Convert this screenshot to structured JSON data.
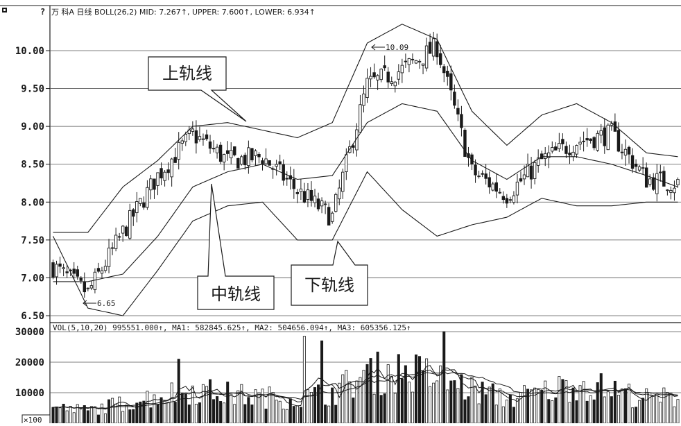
{
  "header": {
    "corner_icon": "square-marker-icon",
    "help_icon": "question-icon",
    "text": "万  科A 日线 BOLL(26,2) MID: 7.267↑, UPPER: 7.600↑, LOWER: 6.934↑"
  },
  "volume_header": {
    "text": "VOL(5,10,20) 995551.000↑, MA1: 582845.625↑, MA2: 504656.094↑, MA3: 605356.125↑"
  },
  "volume_unit": "×100",
  "callouts": {
    "upper": "上轨线",
    "middle": "中轨线",
    "lower": "下轨线"
  },
  "annotations": {
    "high": "10.09",
    "low": "6.65"
  },
  "colors": {
    "background": "#ffffff",
    "ink": "#1a1a1a",
    "grid": "#555555"
  },
  "chart_data": [
    {
      "type": "line",
      "panel": "price",
      "ylim": [
        6.5,
        10.5
      ],
      "yticks": [
        "10.00",
        "9.50",
        "9.00",
        "8.50",
        "8.00",
        "7.50",
        "7.00",
        "6.50"
      ],
      "ytick_values": [
        10.0,
        9.5,
        9.0,
        8.5,
        8.0,
        7.5,
        7.0,
        6.5
      ],
      "candles": 180,
      "x": [
        0,
        10,
        20,
        30,
        40,
        50,
        60,
        70,
        80,
        90,
        100,
        110,
        120,
        130,
        140,
        150,
        160,
        170,
        179
      ],
      "close": [
        7.15,
        6.8,
        7.6,
        8.35,
        8.9,
        8.55,
        8.6,
        8.15,
        7.8,
        9.55,
        9.75,
        10.05,
        8.4,
        8.1,
        8.55,
        8.8,
        8.9,
        8.3,
        8.25
      ],
      "bands": {
        "upper": [
          7.6,
          7.6,
          8.2,
          8.55,
          9.0,
          9.05,
          8.95,
          8.85,
          9.05,
          10.1,
          10.35,
          10.15,
          9.2,
          8.75,
          9.15,
          9.3,
          9.05,
          8.65,
          8.6
        ],
        "middle": [
          6.95,
          6.95,
          7.05,
          7.55,
          8.2,
          8.4,
          8.5,
          8.3,
          8.35,
          9.05,
          9.3,
          9.2,
          8.55,
          8.3,
          8.6,
          8.6,
          8.5,
          8.35,
          8.2
        ],
        "lower": [
          7.55,
          6.6,
          6.5,
          7.1,
          7.75,
          7.95,
          8.0,
          7.5,
          7.5,
          8.4,
          7.9,
          7.55,
          7.7,
          7.8,
          8.05,
          7.95,
          7.95,
          8.0,
          8.0
        ]
      },
      "high_point": {
        "x": 91,
        "value": 10.09
      },
      "low_point": {
        "x": 9,
        "value": 6.65
      }
    },
    {
      "type": "bar",
      "panel": "volume",
      "ylim": [
        0,
        32000
      ],
      "yticks": [
        "30000",
        "20000",
        "10000"
      ],
      "ytick_values": [
        30000,
        20000,
        10000
      ],
      "x": [
        0,
        10,
        20,
        30,
        40,
        50,
        60,
        70,
        80,
        90,
        100,
        110,
        120,
        130,
        140,
        150,
        160,
        170,
        179
      ],
      "values": [
        5000,
        4200,
        6500,
        9000,
        11000,
        9500,
        8500,
        8000,
        10000,
        16000,
        17000,
        15000,
        11000,
        8000,
        10000,
        13000,
        11000,
        8000,
        8500
      ],
      "peaks": [
        {
          "x": 36,
          "value": 21000
        },
        {
          "x": 72,
          "value": 28500
        },
        {
          "x": 77,
          "value": 27000
        },
        {
          "x": 112,
          "value": 30000
        }
      ]
    }
  ]
}
